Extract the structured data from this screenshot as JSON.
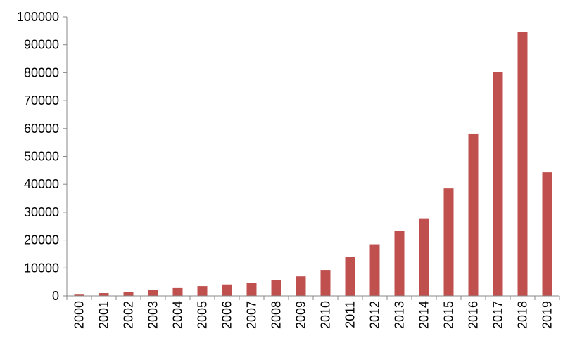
{
  "chart_data": {
    "type": "bar",
    "title": "",
    "xlabel": "",
    "ylabel": "",
    "categories": [
      "2000",
      "2001",
      "2002",
      "2003",
      "2004",
      "2005",
      "2006",
      "2007",
      "2008",
      "2009",
      "2010",
      "2011",
      "2012",
      "2013",
      "2014",
      "2015",
      "2016",
      "2017",
      "2018",
      "2019"
    ],
    "values": [
      700,
      1000,
      1500,
      2200,
      2800,
      3500,
      4100,
      4700,
      5700,
      7000,
      9300,
      14000,
      18500,
      23200,
      27800,
      38500,
      58200,
      80300,
      94500,
      44300
    ],
    "ylim": [
      0,
      100000
    ],
    "yticks": [
      0,
      10000,
      20000,
      30000,
      40000,
      50000,
      60000,
      70000,
      80000,
      90000,
      100000
    ],
    "ytick_labels": [
      "0",
      "10000",
      "20000",
      "30000",
      "40000",
      "50000",
      "60000",
      "70000",
      "80000",
      "90000",
      "100000"
    ],
    "grid": false,
    "legend": "none",
    "bar_color": "#c0504d",
    "axis_color": "#888888"
  }
}
